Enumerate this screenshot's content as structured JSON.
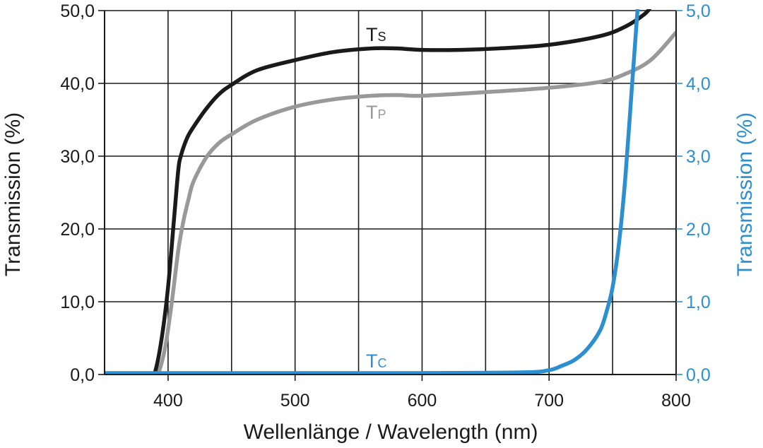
{
  "chart_data": {
    "type": "line",
    "xlabel": "Wellenlänge / Wavelength (nm)",
    "ylabel_left": "Transmission (%)",
    "ylabel_right": "Transmission (%)",
    "xlim": [
      350,
      800
    ],
    "ylim_left": [
      0,
      50
    ],
    "ylim_right": [
      0,
      5
    ],
    "x_ticks": [
      "400",
      "500",
      "600",
      "700",
      "800"
    ],
    "y_ticks_left": [
      "0,0",
      "10,0",
      "20,0",
      "30,0",
      "40,0",
      "50,0"
    ],
    "y_ticks_right": [
      "0,0",
      "1,0",
      "2,0",
      "3,0",
      "4,0",
      "5,0"
    ],
    "grid": true,
    "colors": {
      "ts": "#1a1a1a",
      "tp": "#999999",
      "tc": "#2b8fd0",
      "axis_right": "#2b8fd0"
    },
    "series": [
      {
        "name": "TS",
        "label_main": "T",
        "label_sub": "S",
        "axis": "left",
        "x": [
          350,
          385,
          390,
          395,
          400,
          405,
          408,
          410,
          415,
          420,
          430,
          440,
          450,
          470,
          500,
          530,
          560,
          580,
          600,
          630,
          660,
          700,
          740,
          760,
          775,
          780
        ],
        "y": [
          -1,
          -1,
          0.5,
          5,
          12,
          22,
          28,
          30,
          32.5,
          34,
          36.5,
          38.5,
          39.8,
          41.8,
          43.2,
          44.3,
          44.8,
          44.8,
          44.6,
          44.6,
          44.8,
          45.3,
          46.5,
          47.8,
          49.5,
          50.5
        ]
      },
      {
        "name": "TP",
        "label_main": "T",
        "label_sub": "P",
        "axis": "left",
        "x": [
          350,
          388,
          393,
          398,
          403,
          408,
          412,
          416,
          420,
          430,
          440,
          450,
          470,
          500,
          530,
          560,
          580,
          600,
          650,
          700,
          740,
          760,
          780,
          800
        ],
        "y": [
          -1,
          -1,
          0.5,
          4,
          10,
          17,
          21,
          24,
          26.5,
          29.8,
          31.8,
          33,
          35,
          36.8,
          37.8,
          38.3,
          38.4,
          38.3,
          38.8,
          39.4,
          40.2,
          41.3,
          43.2,
          47
        ]
      },
      {
        "name": "TC",
        "label_main": "T",
        "label_sub": "C",
        "axis": "right",
        "x": [
          350,
          500,
          600,
          680,
          700,
          710,
          720,
          730,
          740,
          745,
          750,
          755,
          760,
          765,
          770
        ],
        "y": [
          0.02,
          0.02,
          0.02,
          0.03,
          0.06,
          0.12,
          0.2,
          0.35,
          0.6,
          0.85,
          1.2,
          1.8,
          2.7,
          3.9,
          5.1
        ]
      }
    ]
  }
}
